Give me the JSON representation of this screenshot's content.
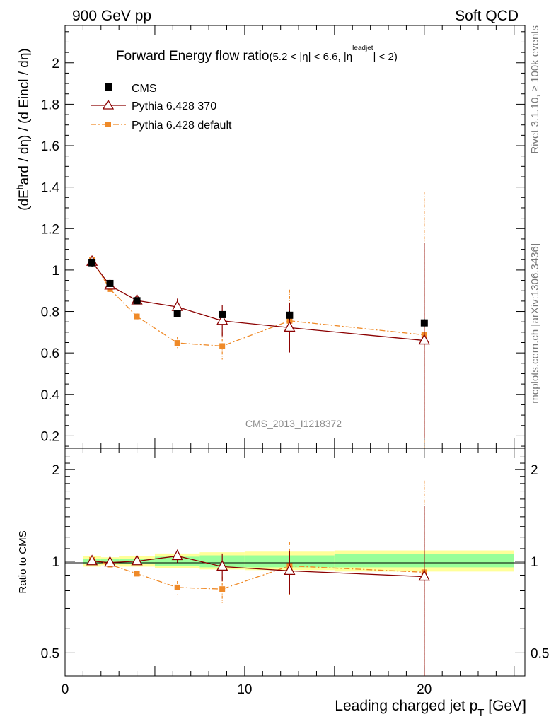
{
  "header": {
    "left": "900 GeV pp",
    "right": "Soft QCD",
    "side_top": "Rivet 3.1.10, ≥ 100k events",
    "side_bottom": "mcplots.cern.ch [arXiv:1306.3436]"
  },
  "chart_data": [
    {
      "type": "line",
      "title_main": "Forward Energy flow ratio",
      "title_sub_a": "(5.2 < |η| < 6.6, |η",
      "title_sup": "leadjet",
      "title_sub_b": "| < 2)",
      "ylabel_a": "(dE",
      "ylabel_sup": "h",
      "ylabel_b": "ard / dη) / (d Eincl / dη)",
      "watermark": "CMS_2013_I1218372",
      "xlim": [
        0,
        25.6
      ],
      "ylim": [
        0.14,
        2.18
      ],
      "yticks": [
        0.2,
        0.4,
        0.6,
        0.8,
        1,
        1.2,
        1.4,
        1.6,
        1.8,
        2
      ],
      "ytick_labels": [
        "0.2",
        "0.4",
        "0.6",
        "0.8",
        "1",
        "1.2",
        "1.4",
        "1.6",
        "1.8",
        "2"
      ],
      "legend_position": "top-left",
      "series": [
        {
          "name": "CMS",
          "color": "#000000",
          "marker": "square",
          "x": [
            1.5,
            2.5,
            4.0,
            6.25,
            8.75,
            12.5,
            20.0
          ],
          "y": [
            1.035,
            0.935,
            0.852,
            0.79,
            0.785,
            0.782,
            0.745
          ],
          "err": [
            0.02,
            0.015,
            0.015,
            0.015,
            0.015,
            0.02,
            0.02
          ]
        },
        {
          "name": "Pythia 6.428 370",
          "color": "#8b0000",
          "marker": "triangle",
          "x": [
            1.5,
            2.5,
            4.0,
            6.25,
            8.75,
            12.5,
            20.0
          ],
          "y": [
            1.04,
            0.925,
            0.853,
            0.822,
            0.755,
            0.722,
            0.66
          ],
          "err": [
            0.012,
            0.015,
            0.018,
            0.04,
            0.075,
            0.12,
            0.47
          ]
        },
        {
          "name": "Pythia 6.428 default",
          "color": "#ef8a28",
          "marker": "square-dashdot",
          "x": [
            1.5,
            2.5,
            4.0,
            6.25,
            8.75,
            12.5,
            20.0
          ],
          "y": [
            1.048,
            0.908,
            0.776,
            0.648,
            0.633,
            0.755,
            0.687
          ],
          "err": [
            0.012,
            0.015,
            0.018,
            0.03,
            0.065,
            0.15,
            0.69
          ]
        }
      ]
    },
    {
      "type": "line",
      "ylabel": "Ratio to CMS",
      "xlabel_a": "Leading charged jet p",
      "xlabel_sub": "T",
      "xlabel_b": " [GeV]",
      "xlim": [
        0,
        25.6
      ],
      "ylim": [
        0.42,
        2.35
      ],
      "yscale": "log",
      "yticks_labeled": [
        0.5,
        1,
        2
      ],
      "ytick_labels": [
        "0.5",
        "1",
        "2"
      ],
      "xticks": [
        0,
        10,
        20
      ],
      "xtick_labels": [
        "0",
        "10",
        "20"
      ],
      "uncertainty_bands": [
        {
          "x0": 1.0,
          "x1": 2.0,
          "inner": [
            0.98,
            1.02
          ],
          "outer": [
            0.96,
            1.04
          ]
        },
        {
          "x0": 2.0,
          "x1": 3.0,
          "inner": [
            0.985,
            1.015
          ],
          "outer": [
            0.97,
            1.03
          ]
        },
        {
          "x0": 3.0,
          "x1": 5.0,
          "inner": [
            0.98,
            1.02
          ],
          "outer": [
            0.96,
            1.04
          ]
        },
        {
          "x0": 5.0,
          "x1": 7.5,
          "inner": [
            0.965,
            1.035
          ],
          "outer": [
            0.95,
            1.06
          ]
        },
        {
          "x0": 7.5,
          "x1": 10.0,
          "inner": [
            0.955,
            1.045
          ],
          "outer": [
            0.94,
            1.07
          ]
        },
        {
          "x0": 10.0,
          "x1": 15.0,
          "inner": [
            0.955,
            1.045
          ],
          "outer": [
            0.935,
            1.075
          ]
        },
        {
          "x0": 15.0,
          "x1": 25.0,
          "inner": [
            0.955,
            1.055
          ],
          "outer": [
            0.925,
            1.085
          ]
        }
      ],
      "series": [
        {
          "name": "Pythia 6.428 370",
          "color": "#8b0000",
          "marker": "triangle",
          "x": [
            1.5,
            2.5,
            4.0,
            6.25,
            8.75,
            12.5,
            20.0
          ],
          "y": [
            1.0,
            0.99,
            1.0,
            1.04,
            0.96,
            0.93,
            0.89
          ],
          "err": [
            0.015,
            0.015,
            0.02,
            0.05,
            0.1,
            0.15,
            0.63
          ]
        },
        {
          "name": "Pythia 6.428 default",
          "color": "#ef8a28",
          "marker": "square-dashdot",
          "x": [
            1.5,
            2.5,
            4.0,
            6.25,
            8.75,
            12.5,
            20.0
          ],
          "y": [
            1.01,
            0.975,
            0.91,
            0.82,
            0.81,
            0.965,
            0.92
          ],
          "err": [
            0.015,
            0.015,
            0.02,
            0.04,
            0.08,
            0.19,
            0.92
          ]
        }
      ]
    }
  ]
}
